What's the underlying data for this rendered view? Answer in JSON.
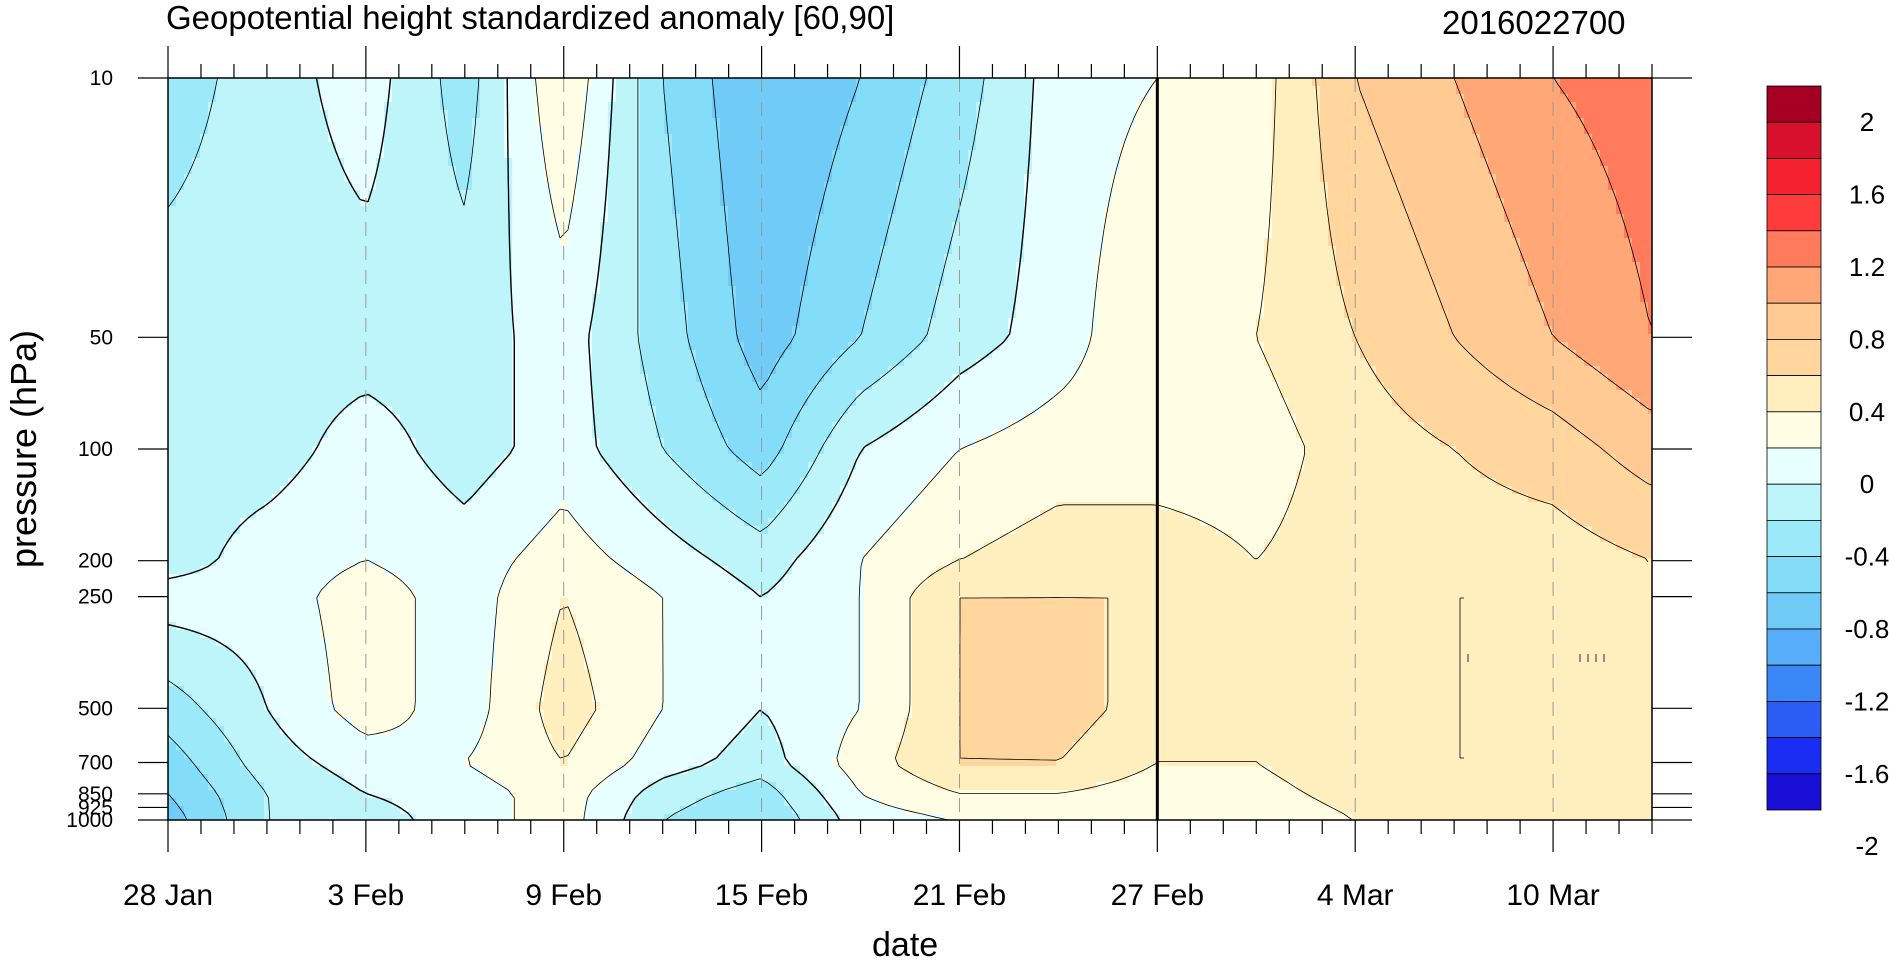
{
  "chart_data": {
    "type": "heatmap",
    "subtype": "filled-contour",
    "title": "Geopotential height standardized anomaly [60,90]",
    "date_label": "2016022700",
    "xlabel": "date",
    "ylabel": "pressure (hPa)",
    "x_ticks": [
      "28 Jan",
      "3 Feb",
      "9 Feb",
      "15 Feb",
      "21 Feb",
      "27 Feb",
      "4 Mar",
      "10 Mar"
    ],
    "x_range_days": [
      0,
      45
    ],
    "forecast_start_day": 30,
    "y_ticks": [
      "10",
      "50",
      "100",
      "200",
      "250",
      "500",
      "700",
      "850",
      "925",
      "1000"
    ],
    "y_scale": "log",
    "y_range": [
      1000,
      10
    ],
    "colorbar": {
      "labels": [
        "2",
        "1.6",
        "1.2",
        "0.8",
        "0.4",
        "0",
        "-0.4",
        "-0.8",
        "-1.2",
        "-1.6",
        "-2"
      ],
      "colors": [
        "#a50021",
        "#d7102c",
        "#f5212e",
        "#ff3c3c",
        "#ff7b5b",
        "#ffa776",
        "#ffca94",
        "#ffd79e",
        "#ffefbe",
        "#fffde4",
        "#e8ffff",
        "#bdf5fb",
        "#9ceaf9",
        "#83dcf8",
        "#70cbf7",
        "#58adfa",
        "#3a88f7",
        "#2b5cf4",
        "#1a2df2",
        "#1a0fd6"
      ]
    },
    "anomaly_grid": {
      "days": [
        0,
        3,
        6,
        9,
        12,
        15,
        18,
        21,
        24,
        27,
        30,
        33,
        36,
        39,
        42,
        45
      ],
      "levels": [
        1000,
        850,
        700,
        500,
        250,
        200,
        100,
        50,
        10
      ],
      "values": [
        [
          -0.7,
          -0.2,
          -0.1,
          0.1,
          0.3,
          -0.2,
          -0.4,
          0.1,
          0.2,
          0.2,
          0.2,
          0.2,
          0.4,
          0.4,
          0.5,
          0.5
        ],
        [
          -0.6,
          -0.2,
          0.0,
          0.1,
          0.3,
          -0.1,
          -0.3,
          0.2,
          0.4,
          0.4,
          0.3,
          0.3,
          0.5,
          0.5,
          0.5,
          0.5
        ],
        [
          -0.5,
          -0.1,
          0.1,
          0.2,
          0.4,
          0.1,
          -0.1,
          0.3,
          0.6,
          0.6,
          0.4,
          0.4,
          0.6,
          0.6,
          0.6,
          0.5
        ],
        [
          -0.3,
          0.0,
          0.3,
          0.1,
          0.5,
          0.2,
          0.0,
          0.2,
          0.6,
          0.7,
          0.5,
          0.5,
          0.6,
          0.6,
          0.6,
          0.6
        ],
        [
          0.1,
          0.1,
          0.3,
          0.1,
          0.4,
          0.2,
          0.0,
          0.2,
          0.6,
          0.6,
          0.6,
          0.5,
          0.6,
          0.6,
          0.6,
          0.6
        ],
        [
          -0.1,
          0.1,
          0.2,
          0.1,
          0.3,
          0.1,
          -0.1,
          0.2,
          0.4,
          0.5,
          0.5,
          0.4,
          0.5,
          0.5,
          0.5,
          0.6
        ],
        [
          -0.1,
          -0.1,
          0.1,
          -0.1,
          0.1,
          -0.2,
          -0.5,
          0.0,
          0.2,
          0.3,
          0.3,
          0.3,
          0.5,
          0.6,
          0.7,
          0.9
        ],
        [
          -0.1,
          -0.1,
          -0.1,
          -0.1,
          0.1,
          -0.3,
          -0.7,
          -0.4,
          -0.1,
          0.1,
          0.4,
          0.4,
          0.6,
          0.8,
          1.0,
          1.2
        ],
        [
          -0.3,
          -0.1,
          0.1,
          -0.3,
          0.4,
          -0.4,
          -0.8,
          -0.6,
          -0.3,
          0.1,
          0.2,
          0.3,
          0.8,
          1.0,
          1.2,
          1.3
        ]
      ]
    }
  }
}
